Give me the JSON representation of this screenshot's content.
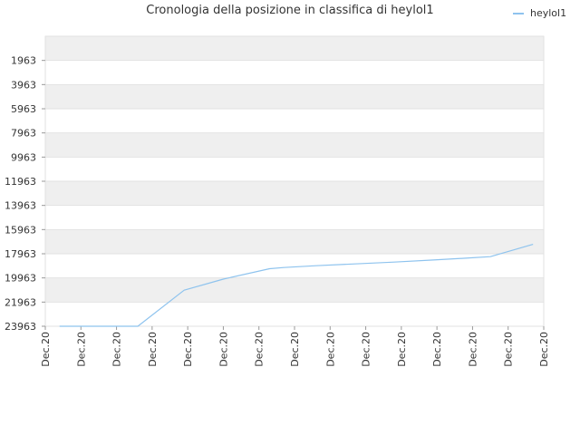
{
  "chart_data": {
    "type": "line",
    "title": "Cronologia della posizione in classifica di heylol1",
    "xlabel": "",
    "ylabel": "",
    "x_tick_labels": [
      "Dec.20",
      "Dec.20",
      "Dec.20",
      "Dec.20",
      "Dec.20",
      "Dec.20",
      "Dec.20",
      "Dec.20",
      "Dec.20",
      "Dec.20",
      "Dec.20",
      "Dec.20",
      "Dec.20",
      "Dec.20",
      "Dec.20"
    ],
    "y_tick_values": [
      1963,
      3963,
      5963,
      7963,
      9963,
      11963,
      13963,
      15963,
      17963,
      19963,
      21963,
      23963
    ],
    "ylim": [
      23963,
      -37
    ],
    "y_inverted": true,
    "xlim": [
      0,
      14
    ],
    "grid": true,
    "legend_position": "top-right",
    "series": [
      {
        "name": "heylol1",
        "color": "#8ec3ee",
        "x": [
          0.4,
          1.5,
          2.6,
          3.9,
          5.0,
          6.3,
          6.7,
          7.6,
          8.7,
          9.8,
          10.9,
          11.8,
          12.5,
          13.7
        ],
        "y": [
          23963,
          23963,
          23963,
          20980,
          20060,
          19200,
          19100,
          18950,
          18800,
          18650,
          18480,
          18330,
          18200,
          17180
        ]
      }
    ]
  }
}
